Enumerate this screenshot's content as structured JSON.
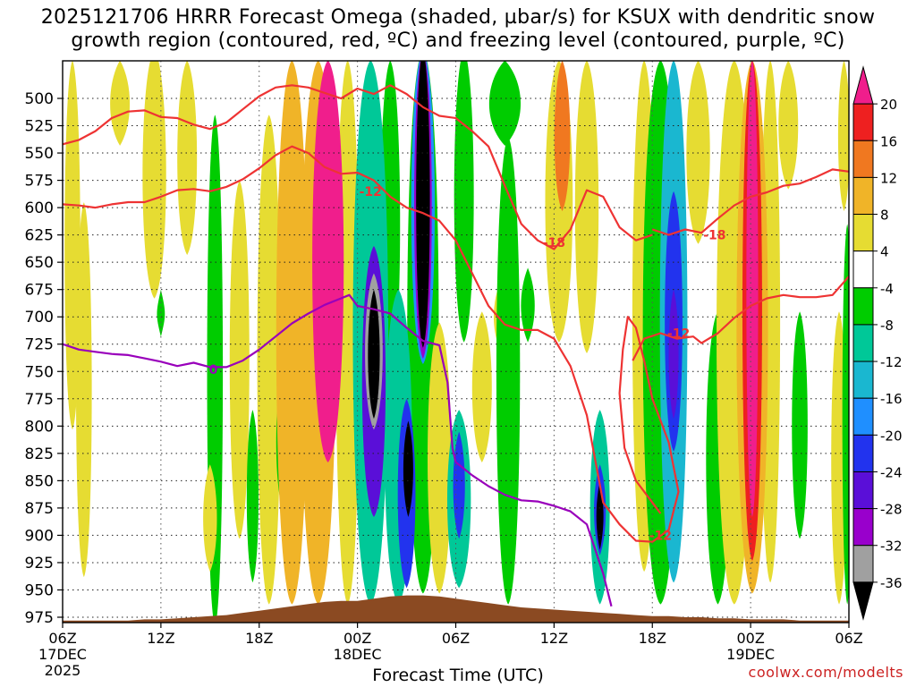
{
  "title": {
    "line1": "2025121706 HRRR Forecast Omega (shaded, µbar/s) for KSUX with dendritic snow",
    "line2": "growth region (contoured, red, ºC) and freezing level (contoured, purple, ºC)"
  },
  "credit": "coolwx.com/modelts",
  "chart_data": {
    "type": "heatmap",
    "xlabel": "Forecast Time (UTC)",
    "ylabel": "",
    "x_hours": [
      0,
      48
    ],
    "x_ticks": [
      {
        "hour": 0,
        "label": "06Z",
        "date": "17DEC",
        "year": "2025"
      },
      {
        "hour": 6,
        "label": "12Z"
      },
      {
        "hour": 12,
        "label": "18Z"
      },
      {
        "hour": 18,
        "label": "00Z",
        "date": "18DEC"
      },
      {
        "hour": 24,
        "label": "06Z"
      },
      {
        "hour": 30,
        "label": "12Z"
      },
      {
        "hour": 36,
        "label": "18Z"
      },
      {
        "hour": 42,
        "label": "00Z",
        "date": "19DEC"
      },
      {
        "hour": 48,
        "label": "06Z"
      }
    ],
    "y_pressure_range": [
      980,
      470
    ],
    "y_ticks": [
      500,
      525,
      550,
      575,
      600,
      625,
      650,
      675,
      700,
      725,
      750,
      775,
      800,
      825,
      850,
      875,
      900,
      925,
      950,
      975
    ],
    "grid": true,
    "colorbar": {
      "levels": [
        -36,
        -32,
        -28,
        -24,
        -20,
        -16,
        -12,
        -8,
        -4,
        4,
        8,
        12,
        16,
        20
      ],
      "labels": [
        "-36",
        "-32",
        "-28",
        "-24",
        "-20",
        "-16",
        "-12",
        "-8",
        "-4",
        "4",
        "8",
        "12",
        "16",
        "20"
      ],
      "colors": [
        "#000000",
        "#a0a0a0",
        "#9900cc",
        "#5a0fd8",
        "#2233ee",
        "#1f8fff",
        "#1ab7d0",
        "#00c898",
        "#00cc00",
        "#ffffff",
        "#e6dc32",
        "#f0b428",
        "#f07820",
        "#ee2020",
        "#f01e8c"
      ]
    },
    "omega_features": [
      {
        "hour": 0.6,
        "p_top": 470,
        "p_bot": 800,
        "width": 0.4,
        "value": 6
      },
      {
        "hour": 1.3,
        "p_top": 600,
        "p_bot": 935,
        "width": 0.4,
        "value": 6
      },
      {
        "hour": 3.5,
        "p_top": 470,
        "p_bot": 540,
        "width": 0.5,
        "value": 5
      },
      {
        "hour": 5.6,
        "p_top": 460,
        "p_bot": 680,
        "width": 0.6,
        "value": 5
      },
      {
        "hour": 6.0,
        "p_top": 680,
        "p_bot": 715,
        "width": 0.2,
        "value": -6
      },
      {
        "hour": 7.6,
        "p_top": 470,
        "p_bot": 640,
        "width": 0.5,
        "value": 6
      },
      {
        "hour": 9.3,
        "p_top": 520,
        "p_bot": 980,
        "width": 0.4,
        "value": -6
      },
      {
        "hour": 9.0,
        "p_top": 840,
        "p_bot": 930,
        "width": 0.35,
        "value": 6
      },
      {
        "hour": 10.8,
        "p_top": 580,
        "p_bot": 900,
        "width": 0.5,
        "value": 6
      },
      {
        "hour": 11.6,
        "p_top": 790,
        "p_bot": 940,
        "width": 0.3,
        "value": -6
      },
      {
        "hour": 12.6,
        "p_top": 520,
        "p_bot": 960,
        "width": 0.6,
        "value": 6
      },
      {
        "hour": 13.4,
        "p_top": 760,
        "p_bot": 870,
        "width": 0.3,
        "value": -6
      },
      {
        "hour": 14.0,
        "p_top": 470,
        "p_bot": 960,
        "width": 0.8,
        "value": 8
      },
      {
        "hour": 15.6,
        "p_top": 470,
        "p_bot": 960,
        "width": 0.9,
        "value": 10
      },
      {
        "hour": 16.2,
        "p_top": 470,
        "p_bot": 830,
        "width": 0.8,
        "value": 22
      },
      {
        "hour": 17.4,
        "p_top": 470,
        "p_bot": 960,
        "width": 0.6,
        "value": 6
      },
      {
        "hour": 18.8,
        "p_top": 470,
        "p_bot": 960,
        "width": 0.9,
        "value": -12
      },
      {
        "hour": 19.0,
        "p_top": 640,
        "p_bot": 880,
        "width": 0.6,
        "value": -26
      },
      {
        "hour": 19.0,
        "p_top": 665,
        "p_bot": 800,
        "width": 0.45,
        "value": -33
      },
      {
        "hour": 19.0,
        "p_top": 680,
        "p_bot": 790,
        "width": 0.3,
        "value": -40
      },
      {
        "hour": 20.0,
        "p_top": 470,
        "p_bot": 760,
        "width": 0.5,
        "value": -6
      },
      {
        "hour": 20.5,
        "p_top": 680,
        "p_bot": 960,
        "width": 0.7,
        "value": -10
      },
      {
        "hour": 21.0,
        "p_top": 780,
        "p_bot": 945,
        "width": 0.45,
        "value": -22
      },
      {
        "hour": 21.1,
        "p_top": 800,
        "p_bot": 880,
        "width": 0.25,
        "value": -40
      },
      {
        "hour": 22.0,
        "p_top": 460,
        "p_bot": 950,
        "width": 0.8,
        "value": -6
      },
      {
        "hour": 22.0,
        "p_top": 460,
        "p_bot": 740,
        "width": 0.6,
        "value": -20
      },
      {
        "hour": 22.0,
        "p_top": 460,
        "p_bot": 735,
        "width": 0.45,
        "value": -30
      },
      {
        "hour": 22.0,
        "p_top": 460,
        "p_bot": 725,
        "width": 0.35,
        "value": -40
      },
      {
        "hour": 23.0,
        "p_top": 710,
        "p_bot": 950,
        "width": 0.6,
        "value": 6
      },
      {
        "hour": 24.2,
        "p_top": 790,
        "p_bot": 945,
        "width": 0.6,
        "value": -10
      },
      {
        "hour": 24.2,
        "p_top": 810,
        "p_bot": 900,
        "width": 0.3,
        "value": -24
      },
      {
        "hour": 24.5,
        "p_top": 460,
        "p_bot": 720,
        "width": 0.5,
        "value": -6
      },
      {
        "hour": 25.6,
        "p_top": 700,
        "p_bot": 830,
        "width": 0.5,
        "value": 6
      },
      {
        "hour": 27.0,
        "p_top": 470,
        "p_bot": 540,
        "width": 0.8,
        "value": -6
      },
      {
        "hour": 27.2,
        "p_top": 540,
        "p_bot": 960,
        "width": 0.6,
        "value": -6
      },
      {
        "hour": 26.8,
        "p_top": 670,
        "p_bot": 730,
        "width": 0.4,
        "value": 5
      },
      {
        "hour": 28.4,
        "p_top": 660,
        "p_bot": 720,
        "width": 0.35,
        "value": -6
      },
      {
        "hour": 30.3,
        "p_top": 470,
        "p_bot": 720,
        "width": 0.7,
        "value": 7
      },
      {
        "hour": 30.5,
        "p_top": 470,
        "p_bot": 600,
        "width": 0.4,
        "value": 14
      },
      {
        "hour": 32.0,
        "p_top": 470,
        "p_bot": 730,
        "width": 0.6,
        "value": 6
      },
      {
        "hour": 32.8,
        "p_top": 790,
        "p_bot": 960,
        "width": 0.5,
        "value": -10
      },
      {
        "hour": 32.8,
        "p_top": 840,
        "p_bot": 915,
        "width": 0.3,
        "value": -24
      },
      {
        "hour": 32.8,
        "p_top": 855,
        "p_bot": 910,
        "width": 0.18,
        "value": -40
      },
      {
        "hour": 35.5,
        "p_top": 470,
        "p_bot": 930,
        "width": 0.6,
        "value": 6
      },
      {
        "hour": 36.5,
        "p_top": 470,
        "p_bot": 960,
        "width": 0.9,
        "value": -8
      },
      {
        "hour": 37.3,
        "p_top": 470,
        "p_bot": 940,
        "width": 0.7,
        "value": -14
      },
      {
        "hour": 37.3,
        "p_top": 590,
        "p_bot": 820,
        "width": 0.45,
        "value": -22
      },
      {
        "hour": 37.3,
        "p_top": 680,
        "p_bot": 790,
        "width": 0.25,
        "value": -28
      },
      {
        "hour": 38.8,
        "p_top": 470,
        "p_bot": 630,
        "width": 0.6,
        "value": 6
      },
      {
        "hour": 40.0,
        "p_top": 700,
        "p_bot": 960,
        "width": 0.6,
        "value": -6
      },
      {
        "hour": 41.0,
        "p_top": 470,
        "p_bot": 960,
        "width": 0.9,
        "value": 6
      },
      {
        "hour": 42.1,
        "p_top": 470,
        "p_bot": 950,
        "width": 0.8,
        "value": 10
      },
      {
        "hour": 42.1,
        "p_top": 470,
        "p_bot": 920,
        "width": 0.5,
        "value": 18
      },
      {
        "hour": 42.1,
        "p_top": 470,
        "p_bot": 880,
        "width": 0.3,
        "value": 22
      },
      {
        "hour": 43.2,
        "p_top": 470,
        "p_bot": 940,
        "width": 0.5,
        "value": 6
      },
      {
        "hour": 44.3,
        "p_top": 470,
        "p_bot": 580,
        "width": 0.5,
        "value": 6
      },
      {
        "hour": 45.0,
        "p_top": 700,
        "p_bot": 900,
        "width": 0.4,
        "value": -6
      },
      {
        "hour": 47.4,
        "p_top": 700,
        "p_bot": 960,
        "width": 0.4,
        "value": 5
      },
      {
        "hour": 47.7,
        "p_top": 470,
        "p_bot": 600,
        "width": 0.3,
        "value": 6
      },
      {
        "hour": 47.9,
        "p_top": 620,
        "p_bot": 960,
        "width": 0.25,
        "value": -6
      }
    ],
    "contours": [
      {
        "name": "-12",
        "color": "#ee3333",
        "label_points": [
          {
            "hour": 18.8,
            "p": 585
          },
          {
            "hour": 36.5,
            "p": 900
          },
          {
            "hour": 37.6,
            "p": 715
          }
        ],
        "points": [
          [
            0,
            542
          ],
          [
            1,
            538
          ],
          [
            2,
            530
          ],
          [
            3,
            518
          ],
          [
            4,
            512
          ],
          [
            5,
            511
          ],
          [
            6,
            517
          ],
          [
            7,
            518
          ],
          [
            8,
            524
          ],
          [
            9,
            528
          ],
          [
            10,
            522
          ],
          [
            11,
            510
          ],
          [
            12,
            498
          ],
          [
            13,
            490
          ],
          [
            14,
            488
          ],
          [
            15,
            490
          ],
          [
            16,
            495
          ],
          [
            17,
            500
          ],
          [
            18,
            491
          ],
          [
            19,
            496
          ],
          [
            20,
            488
          ],
          [
            21,
            496
          ],
          [
            22,
            508
          ],
          [
            23,
            516
          ],
          [
            24,
            518
          ],
          [
            25,
            530
          ],
          [
            26,
            544
          ],
          [
            27,
            580
          ],
          [
            28,
            615
          ],
          [
            29,
            630
          ],
          [
            30,
            638
          ],
          [
            31,
            620
          ],
          [
            32,
            584
          ],
          [
            33,
            590
          ],
          [
            34,
            618
          ],
          [
            35,
            630
          ],
          [
            36,
            625
          ]
        ]
      },
      {
        "name": "-12",
        "color": "#ee3333",
        "points": [
          [
            0,
            597
          ],
          [
            1,
            598
          ],
          [
            2,
            600
          ],
          [
            3,
            597
          ],
          [
            4,
            595
          ],
          [
            5,
            595
          ],
          [
            6,
            590
          ],
          [
            7,
            584
          ],
          [
            8,
            583
          ],
          [
            9,
            585
          ],
          [
            10,
            581
          ],
          [
            11,
            574
          ],
          [
            12,
            564
          ],
          [
            13,
            552
          ],
          [
            14,
            544
          ],
          [
            15,
            550
          ],
          [
            16,
            563
          ],
          [
            17,
            569
          ],
          [
            18,
            568
          ],
          [
            19,
            575
          ],
          [
            20,
            590
          ],
          [
            21,
            600
          ],
          [
            22,
            605
          ],
          [
            23,
            612
          ],
          [
            24,
            630
          ],
          [
            25,
            660
          ],
          [
            26,
            690
          ],
          [
            27,
            707
          ],
          [
            28,
            712
          ],
          [
            29,
            712
          ],
          [
            30,
            720
          ],
          [
            31,
            745
          ],
          [
            32,
            790
          ],
          [
            33,
            870
          ],
          [
            34,
            890
          ],
          [
            35,
            905
          ],
          [
            36,
            906
          ],
          [
            37,
            895
          ],
          [
            37.6,
            860
          ],
          [
            37,
            815
          ],
          [
            36,
            775
          ],
          [
            35.5,
            740
          ],
          [
            35,
            710
          ],
          [
            34.5,
            700
          ],
          [
            34.2,
            730
          ],
          [
            34,
            770
          ],
          [
            34.3,
            820
          ],
          [
            35,
            850
          ],
          [
            36,
            870
          ],
          [
            36.5,
            880
          ]
        ]
      },
      {
        "name": "-12",
        "color": "#ee3333",
        "points": [
          [
            34.8,
            740
          ],
          [
            35.5,
            720
          ],
          [
            36.5,
            715
          ],
          [
            37.5,
            720
          ],
          [
            38.5,
            718
          ],
          [
            39,
            724
          ],
          [
            40,
            715
          ],
          [
            41,
            701
          ],
          [
            42,
            690
          ],
          [
            43,
            683
          ],
          [
            44,
            680
          ],
          [
            45,
            682
          ],
          [
            46,
            682
          ],
          [
            47,
            680
          ],
          [
            48,
            663
          ]
        ]
      },
      {
        "name": "-18",
        "color": "#ee3333",
        "label_points": [
          {
            "hour": 30.0,
            "p": 632
          },
          {
            "hour": 39.8,
            "p": 625
          }
        ],
        "points": [
          [
            36,
            620
          ],
          [
            37,
            625
          ],
          [
            38,
            620
          ],
          [
            39,
            623
          ],
          [
            40,
            610
          ],
          [
            41,
            598
          ],
          [
            42,
            590
          ],
          [
            43,
            586
          ],
          [
            44,
            580
          ],
          [
            45,
            578
          ],
          [
            46,
            572
          ],
          [
            47,
            565
          ],
          [
            48,
            567
          ]
        ]
      },
      {
        "name": "0",
        "color": "#9900bb",
        "label_points": [
          {
            "hour": 9.2,
            "p": 748
          }
        ],
        "points": [
          [
            0,
            725
          ],
          [
            1,
            730
          ],
          [
            2,
            732
          ],
          [
            3,
            734
          ],
          [
            4,
            735
          ],
          [
            5,
            738
          ],
          [
            6,
            741
          ],
          [
            7,
            745
          ],
          [
            8,
            742
          ],
          [
            9,
            746
          ],
          [
            10,
            746
          ],
          [
            11,
            740
          ],
          [
            12,
            730
          ],
          [
            13,
            718
          ],
          [
            14,
            706
          ],
          [
            15,
            697
          ],
          [
            16,
            689
          ],
          [
            17,
            683
          ],
          [
            17.5,
            680
          ],
          [
            18,
            690
          ],
          [
            19,
            693
          ],
          [
            20,
            697
          ],
          [
            21,
            710
          ],
          [
            22,
            722
          ],
          [
            23,
            726
          ],
          [
            23.5,
            760
          ],
          [
            23.8,
            820
          ],
          [
            24,
            833
          ],
          [
            25,
            845
          ],
          [
            26,
            855
          ],
          [
            27,
            863
          ],
          [
            28,
            868
          ],
          [
            29,
            869
          ],
          [
            30,
            873
          ],
          [
            31,
            878
          ],
          [
            32,
            890
          ],
          [
            33,
            935
          ],
          [
            33.5,
            965
          ]
        ]
      }
    ],
    "terrain_pressure": [
      978,
      978,
      978,
      978,
      978,
      977,
      977,
      976,
      975,
      974,
      973,
      971,
      969,
      967,
      965,
      963,
      961,
      960,
      960,
      958,
      956,
      955,
      955,
      956,
      958,
      960,
      962,
      964,
      966,
      967,
      968,
      969,
      970,
      971,
      972,
      973,
      974,
      974,
      975,
      975,
      976,
      976,
      977,
      977,
      977,
      978,
      978,
      978,
      978
    ]
  }
}
